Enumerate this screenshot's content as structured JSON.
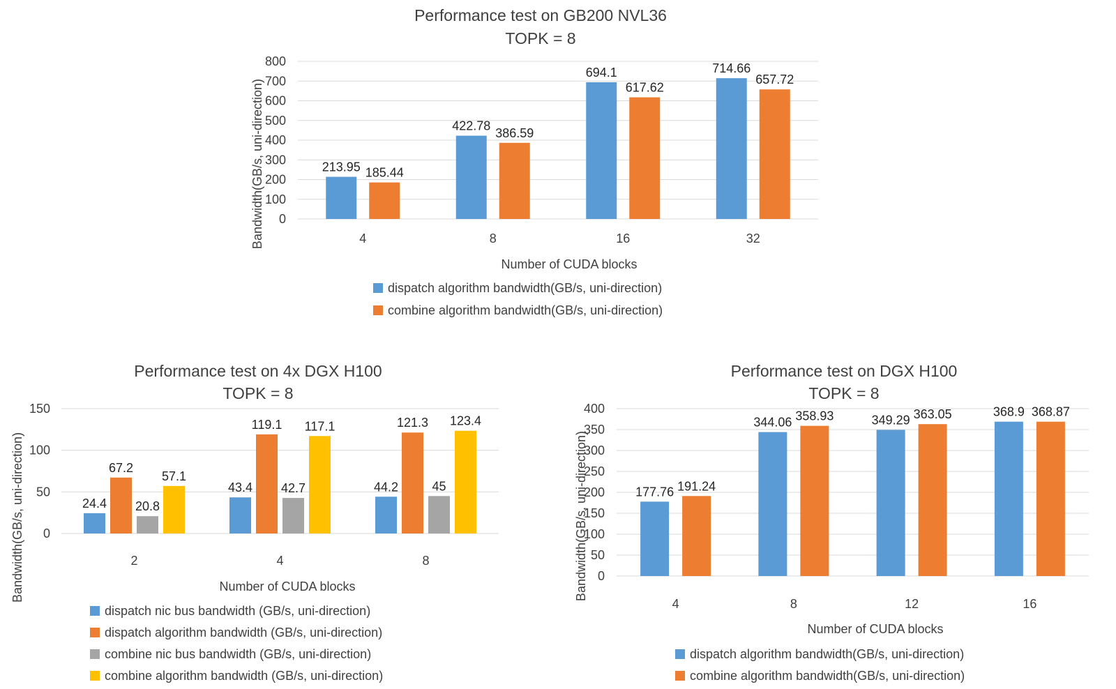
{
  "colors": {
    "blue": "#5b9bd5",
    "orange": "#ed7d31",
    "gray": "#a5a5a5",
    "yellow": "#ffc000",
    "grid": "#d9d9d9",
    "text": "#404040"
  },
  "chart_data": [
    {
      "type": "bar",
      "title": "Performance test on GB200 NVL36",
      "subtitle": "TOPK = 8",
      "xlabel": "Number of CUDA blocks",
      "ylabel": "Bandwidth(GB/s, uni-direction)",
      "categories": [
        "4",
        "8",
        "16",
        "32"
      ],
      "ylim": [
        0,
        800
      ],
      "yticks": [
        0,
        100,
        200,
        300,
        400,
        500,
        600,
        700,
        800
      ],
      "grid": true,
      "legend": "bottom",
      "series": [
        {
          "name": "dispatch algorithm  bandwidth(GB/s, uni-direction)",
          "color": "#5b9bd5",
          "values": [
            213.95,
            422.78,
            694.1,
            714.66
          ],
          "labels": [
            "213.95",
            "422.78",
            "694.1",
            "714.66"
          ]
        },
        {
          "name": "combine algorithm  bandwidth(GB/s, uni-direction)",
          "color": "#ed7d31",
          "values": [
            185.44,
            386.59,
            617.62,
            657.72
          ],
          "labels": [
            "185.44",
            "386.59",
            "617.62",
            "657.72"
          ]
        }
      ]
    },
    {
      "type": "bar",
      "title": "Performance test on 4x DGX H100",
      "subtitle": "TOPK = 8",
      "xlabel": "Number of CUDA blocks",
      "ylabel": "Bandwidth(GB/s, uni-direction)",
      "categories": [
        "2",
        "4",
        "8"
      ],
      "ylim": [
        0,
        150
      ],
      "yticks": [
        0,
        50,
        100,
        150
      ],
      "grid": true,
      "legend": "bottom",
      "series": [
        {
          "name": "dispatch nic bus bandwidth (GB/s, uni-direction)",
          "color": "#5b9bd5",
          "values": [
            24.4,
            43.4,
            44.2
          ],
          "labels": [
            "24.4",
            "43.4",
            "44.2"
          ]
        },
        {
          "name": "dispatch algorithm bandwidth (GB/s, uni-direction)",
          "color": "#ed7d31",
          "values": [
            67.2,
            119.1,
            121.3
          ],
          "labels": [
            "67.2",
            "119.1",
            "121.3"
          ]
        },
        {
          "name": "combine nic bus bandwidth (GB/s, uni-direction)",
          "color": "#a5a5a5",
          "values": [
            20.8,
            42.7,
            45
          ],
          "labels": [
            "20.8",
            "42.7",
            "45"
          ]
        },
        {
          "name": "combine algorithm bandwidth (GB/s, uni-direction)",
          "color": "#ffc000",
          "values": [
            57.1,
            117.1,
            123.4
          ],
          "labels": [
            "57.1",
            "117.1",
            "123.4"
          ]
        }
      ]
    },
    {
      "type": "bar",
      "title": "Performance test on DGX H100",
      "subtitle": "TOPK = 8",
      "xlabel": "Number of CUDA blocks",
      "ylabel": "Bandwidth(GB/s, uni-direction)",
      "categories": [
        "4",
        "8",
        "12",
        "16"
      ],
      "ylim": [
        0,
        400
      ],
      "yticks": [
        0,
        50,
        100,
        150,
        200,
        250,
        300,
        350,
        400
      ],
      "grid": true,
      "legend": "bottom",
      "series": [
        {
          "name": "dispatch algorithm  bandwidth(GB/s, uni-direction)",
          "color": "#5b9bd5",
          "values": [
            177.76,
            344.06,
            349.29,
            368.9
          ],
          "labels": [
            "177.76",
            "344.06",
            "349.29",
            "368.9"
          ]
        },
        {
          "name": "combine algorithm  bandwidth(GB/s, uni-direction)",
          "color": "#ed7d31",
          "values": [
            191.24,
            358.93,
            363.05,
            368.87
          ],
          "labels": [
            "191.24",
            "358.93",
            "363.05",
            "368.87"
          ]
        }
      ]
    }
  ]
}
